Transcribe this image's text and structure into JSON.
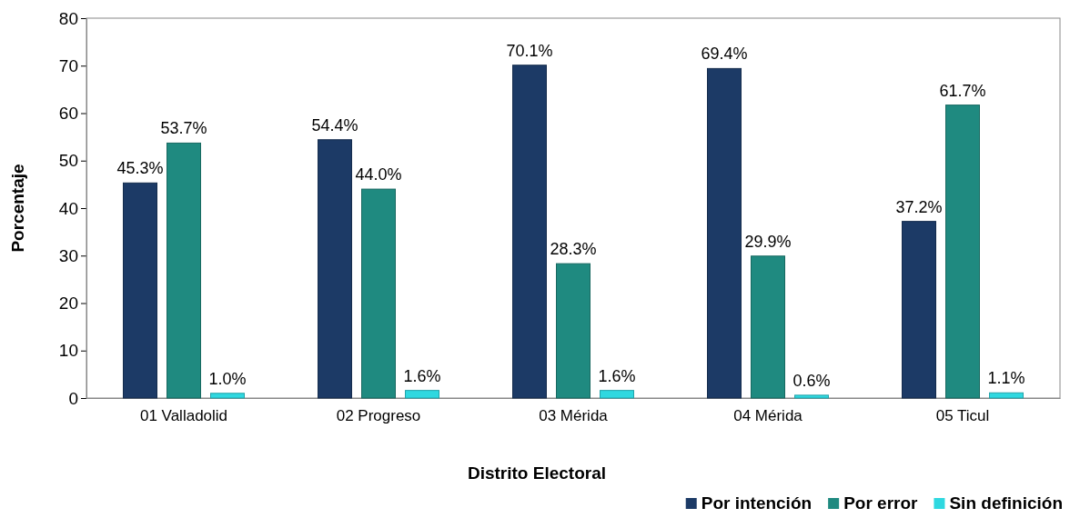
{
  "chart_data": {
    "type": "bar",
    "xlabel": "Distrito Electoral",
    "ylabel": "Porcentaje",
    "categories": [
      "01 Valladolid",
      "02 Progreso",
      "03 Mérida",
      "04 Mérida",
      "05 Ticul"
    ],
    "series": [
      {
        "name": "Por intención",
        "color": "#1c3a66",
        "values": [
          45.3,
          54.4,
          70.1,
          69.4,
          37.2
        ],
        "value_labels": [
          "45.3%",
          "54.4%",
          "70.1%",
          "69.4%",
          "37.2%"
        ]
      },
      {
        "name": "Por error",
        "color": "#1f8a80",
        "values": [
          53.7,
          44.0,
          28.3,
          29.9,
          61.7
        ],
        "value_labels": [
          "53.7%",
          "44.0%",
          "28.3%",
          "29.9%",
          "61.7%"
        ]
      },
      {
        "name": "Sin definición",
        "color": "#2fd8e0",
        "values": [
          1.0,
          1.6,
          1.6,
          0.6,
          1.1
        ],
        "value_labels": [
          "1.0%",
          "1.6%",
          "1.6%",
          "0.6%",
          "1.1%"
        ]
      }
    ],
    "ylim": [
      0,
      80
    ],
    "yticks": [
      0,
      10,
      20,
      30,
      40,
      50,
      60,
      70,
      80
    ],
    "grid": false,
    "legend": "bottom right"
  }
}
